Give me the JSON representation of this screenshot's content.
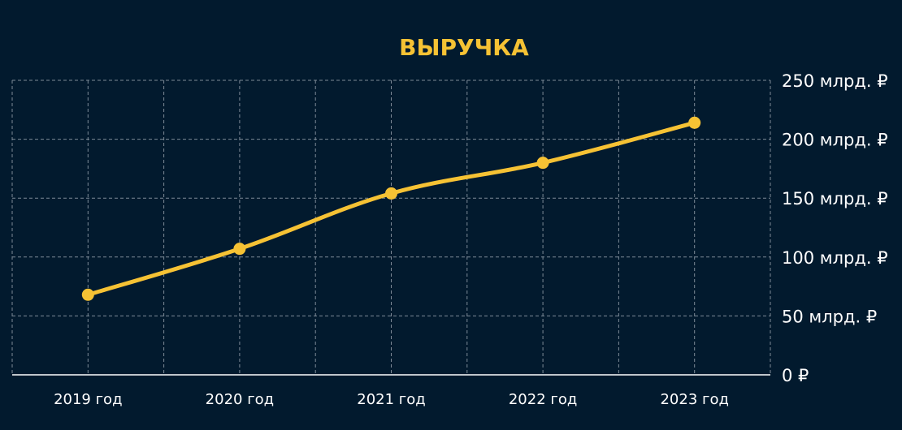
{
  "chart_data": {
    "type": "line",
    "title": "ВЫРУЧКА",
    "xlabel": "",
    "ylabel": "",
    "categories": [
      "2019 год",
      "2020 год",
      "2021 год",
      "2022 год",
      "2023 год"
    ],
    "series": [
      {
        "values": [
          68,
          107,
          154,
          180,
          214
        ]
      }
    ],
    "ylim": [
      0,
      250
    ],
    "y_ticks": [
      0,
      50,
      100,
      150,
      200,
      250
    ],
    "y_tick_labels": [
      "0 ₽",
      "50 млрд. ₽",
      "100 млрд. ₽",
      "150 млрд. ₽",
      "200 млрд. ₽",
      "250 млрд. ₽"
    ],
    "y_axis_side": "right",
    "grid": true,
    "legend": "none"
  },
  "colors": {
    "background": "#021a2e",
    "line": "#f6c234",
    "title": "#f6c234",
    "grid": "#7d8a97",
    "text": "#ffffff"
  }
}
